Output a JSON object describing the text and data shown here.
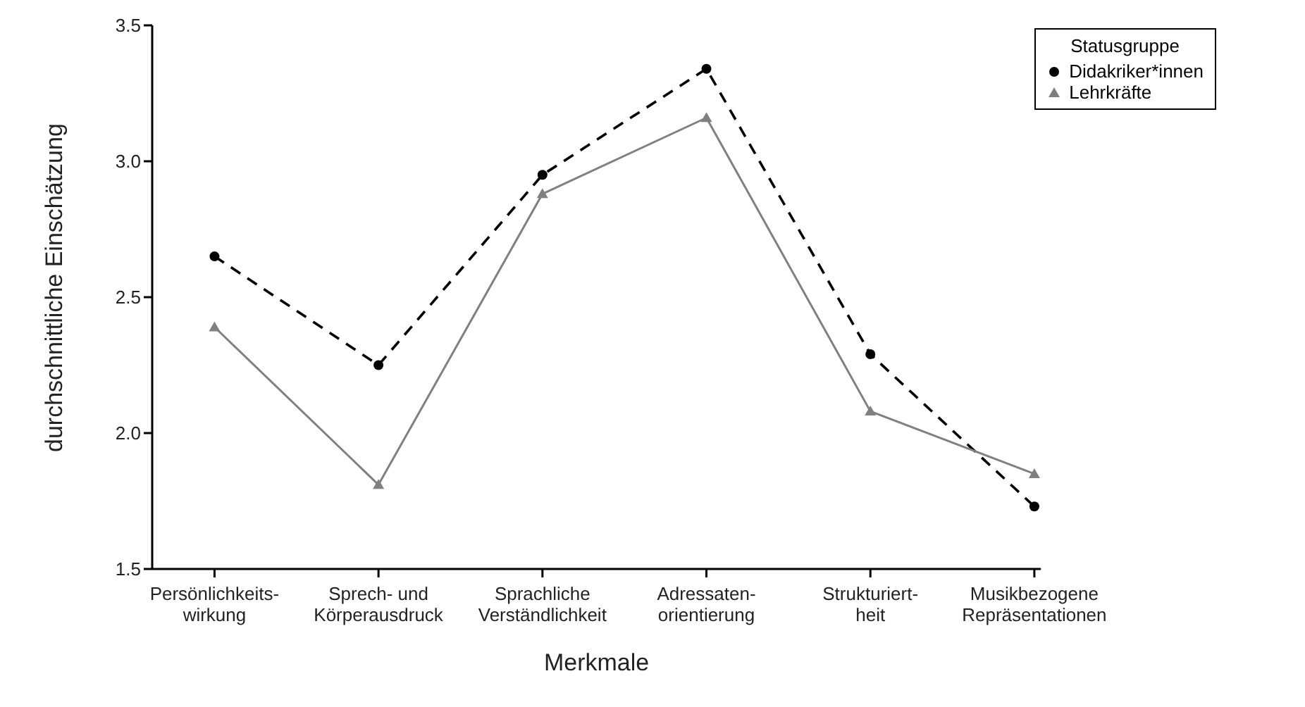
{
  "chart_data": {
    "type": "line",
    "xlabel": "Merkmale",
    "ylabel": "durchschnittliche Einschätzung",
    "legend_title": "Statusgruppe",
    "legend": "top right",
    "grid": false,
    "categories": [
      "Persönlichkeits-\nwirkung",
      "Sprech- und\nKörperausdruck",
      "Sprachliche\nVerständlichkeit",
      "Adressaten-\norientierung",
      "Strukturiert-\nheit",
      "Musikbezogene\nRepräsentationen"
    ],
    "ylim": [
      1.5,
      3.5
    ],
    "yticks": [
      {
        "value": 1.5,
        "label": "1.5"
      },
      {
        "value": 2,
        "label": "2.0"
      },
      {
        "value": 2.5,
        "label": "2.5"
      },
      {
        "value": 3,
        "label": "3.0"
      },
      {
        "value": 3.5,
        "label": "3.5"
      }
    ],
    "series": [
      {
        "name": "Didakriker*innen",
        "color": "#000000",
        "marker": "circle",
        "line_style": "dashed",
        "values": [
          2.65,
          2.25,
          2.95,
          3.34,
          2.29,
          1.73
        ]
      },
      {
        "name": "Lehrkräfte",
        "color": "#808080",
        "marker": "triangle",
        "line_style": "solid",
        "values": [
          2.39,
          1.81,
          2.88,
          3.16,
          2.08,
          1.85
        ]
      }
    ]
  }
}
